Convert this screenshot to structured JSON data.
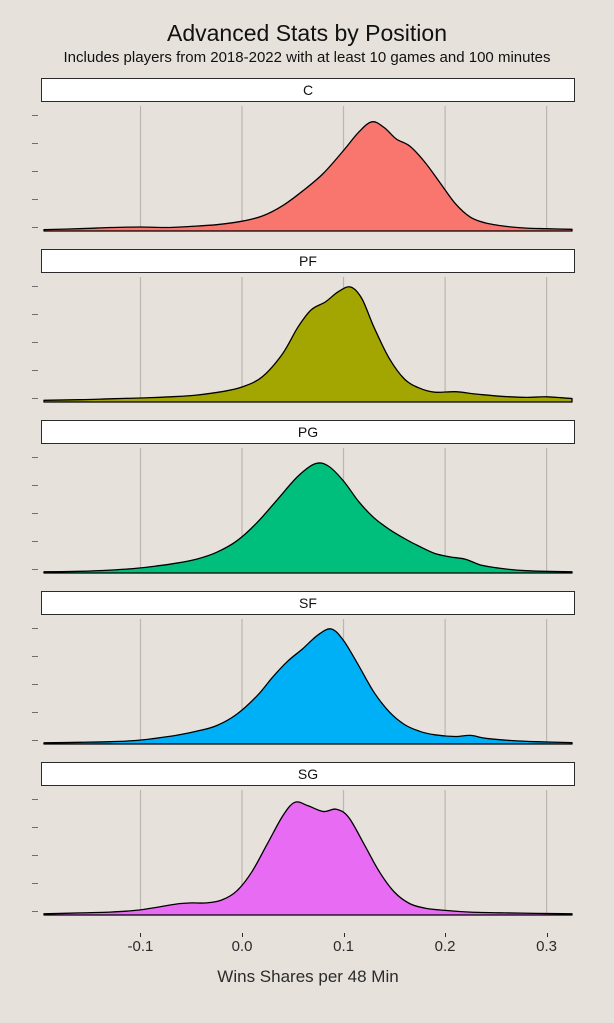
{
  "title": "Advanced Stats by Position",
  "subtitle": "Includes players from 2018-2022 with at least 10 games and 100 minutes",
  "colors": {
    "background": "#E7E1DC",
    "gridline": "#BDB5AF",
    "strip_background": "#FFFFFF",
    "strip_border": "#2B2B2B",
    "curve_outline": "#000000",
    "palette": [
      "#F8766D",
      "#A3A500",
      "#00BF7D",
      "#00B0F6",
      "#E76BF3"
    ]
  },
  "chart_data": {
    "type": "area",
    "chart_kind": "faceted density (ridgeline) plot, one facet per position",
    "title": "Advanced Stats by Position",
    "subtitle": "Includes players from 2018-2022 with at least 10 games and 100 minutes",
    "xlabel": "Wins Shares per 48 Min",
    "ylabel": "",
    "grid": "vertical gridlines at x ticks",
    "legend": "none (facet strips label each series)",
    "x_axis": {
      "min": -0.198,
      "max": 0.328,
      "ticks": [
        -0.1,
        0.0,
        0.1,
        0.2,
        0.3
      ],
      "tick_labels": [
        "-0.1",
        "0.0",
        "0.1",
        "0.2",
        "0.3"
      ]
    },
    "y_axis": {
      "label": "",
      "tick_labels": [],
      "note": "unlabeled density axis, 5 small tick marks per facet"
    },
    "facets": [
      {
        "label": "C",
        "color": "#F8766D",
        "peak_x": 0.128,
        "points": [
          [
            -0.195,
            0.012
          ],
          [
            -0.16,
            0.02
          ],
          [
            -0.13,
            0.03
          ],
          [
            -0.1,
            0.035
          ],
          [
            -0.075,
            0.03
          ],
          [
            -0.05,
            0.04
          ],
          [
            -0.025,
            0.055
          ],
          [
            0.0,
            0.085
          ],
          [
            0.02,
            0.13
          ],
          [
            0.04,
            0.22
          ],
          [
            0.06,
            0.35
          ],
          [
            0.08,
            0.5
          ],
          [
            0.1,
            0.7
          ],
          [
            0.115,
            0.86
          ],
          [
            0.128,
            0.95
          ],
          [
            0.14,
            0.9
          ],
          [
            0.152,
            0.8
          ],
          [
            0.165,
            0.74
          ],
          [
            0.18,
            0.6
          ],
          [
            0.195,
            0.42
          ],
          [
            0.21,
            0.24
          ],
          [
            0.225,
            0.12
          ],
          [
            0.24,
            0.07
          ],
          [
            0.26,
            0.04
          ],
          [
            0.28,
            0.025
          ],
          [
            0.3,
            0.02
          ],
          [
            0.325,
            0.015
          ]
        ]
      },
      {
        "label": "PF",
        "color": "#A3A500",
        "peak_x": 0.107,
        "points": [
          [
            -0.195,
            0.015
          ],
          [
            -0.16,
            0.02
          ],
          [
            -0.13,
            0.028
          ],
          [
            -0.1,
            0.035
          ],
          [
            -0.07,
            0.045
          ],
          [
            -0.045,
            0.06
          ],
          [
            -0.02,
            0.09
          ],
          [
            0.0,
            0.13
          ],
          [
            0.02,
            0.22
          ],
          [
            0.04,
            0.42
          ],
          [
            0.055,
            0.65
          ],
          [
            0.068,
            0.8
          ],
          [
            0.082,
            0.87
          ],
          [
            0.095,
            0.96
          ],
          [
            0.107,
            1.0
          ],
          [
            0.118,
            0.9
          ],
          [
            0.13,
            0.65
          ],
          [
            0.145,
            0.38
          ],
          [
            0.16,
            0.2
          ],
          [
            0.175,
            0.12
          ],
          [
            0.19,
            0.085
          ],
          [
            0.21,
            0.09
          ],
          [
            0.23,
            0.07
          ],
          [
            0.255,
            0.05
          ],
          [
            0.28,
            0.04
          ],
          [
            0.3,
            0.045
          ],
          [
            0.325,
            0.03
          ]
        ]
      },
      {
        "label": "PG",
        "color": "#00BF7D",
        "peak_x": 0.072,
        "points": [
          [
            -0.195,
            0.01
          ],
          [
            -0.16,
            0.015
          ],
          [
            -0.13,
            0.025
          ],
          [
            -0.105,
            0.04
          ],
          [
            -0.085,
            0.06
          ],
          [
            -0.065,
            0.085
          ],
          [
            -0.045,
            0.12
          ],
          [
            -0.025,
            0.18
          ],
          [
            -0.005,
            0.28
          ],
          [
            0.015,
            0.44
          ],
          [
            0.035,
            0.64
          ],
          [
            0.055,
            0.84
          ],
          [
            0.072,
            0.95
          ],
          [
            0.085,
            0.93
          ],
          [
            0.1,
            0.8
          ],
          [
            0.115,
            0.62
          ],
          [
            0.13,
            0.48
          ],
          [
            0.145,
            0.38
          ],
          [
            0.16,
            0.3
          ],
          [
            0.175,
            0.23
          ],
          [
            0.19,
            0.17
          ],
          [
            0.205,
            0.14
          ],
          [
            0.22,
            0.12
          ],
          [
            0.235,
            0.07
          ],
          [
            0.255,
            0.04
          ],
          [
            0.28,
            0.02
          ],
          [
            0.325,
            0.01
          ]
        ]
      },
      {
        "label": "SF",
        "color": "#00B0F6",
        "peak_x": 0.088,
        "points": [
          [
            -0.195,
            0.01
          ],
          [
            -0.16,
            0.015
          ],
          [
            -0.13,
            0.02
          ],
          [
            -0.105,
            0.03
          ],
          [
            -0.085,
            0.05
          ],
          [
            -0.065,
            0.075
          ],
          [
            -0.045,
            0.11
          ],
          [
            -0.025,
            0.16
          ],
          [
            -0.005,
            0.26
          ],
          [
            0.015,
            0.42
          ],
          [
            0.03,
            0.58
          ],
          [
            0.045,
            0.72
          ],
          [
            0.06,
            0.83
          ],
          [
            0.075,
            0.95
          ],
          [
            0.088,
            1.0
          ],
          [
            0.1,
            0.9
          ],
          [
            0.115,
            0.68
          ],
          [
            0.13,
            0.45
          ],
          [
            0.145,
            0.28
          ],
          [
            0.16,
            0.17
          ],
          [
            0.175,
            0.11
          ],
          [
            0.19,
            0.08
          ],
          [
            0.21,
            0.065
          ],
          [
            0.225,
            0.075
          ],
          [
            0.24,
            0.05
          ],
          [
            0.265,
            0.03
          ],
          [
            0.29,
            0.02
          ],
          [
            0.325,
            0.012
          ]
        ]
      },
      {
        "label": "SG",
        "color": "#E76BF3",
        "peak_x": 0.052,
        "points": [
          [
            -0.195,
            0.01
          ],
          [
            -0.16,
            0.018
          ],
          [
            -0.13,
            0.025
          ],
          [
            -0.105,
            0.04
          ],
          [
            -0.085,
            0.065
          ],
          [
            -0.065,
            0.095
          ],
          [
            -0.05,
            0.105
          ],
          [
            -0.035,
            0.105
          ],
          [
            -0.02,
            0.13
          ],
          [
            -0.005,
            0.21
          ],
          [
            0.01,
            0.38
          ],
          [
            0.025,
            0.62
          ],
          [
            0.04,
            0.86
          ],
          [
            0.052,
            0.98
          ],
          [
            0.065,
            0.95
          ],
          [
            0.08,
            0.9
          ],
          [
            0.093,
            0.92
          ],
          [
            0.105,
            0.85
          ],
          [
            0.12,
            0.62
          ],
          [
            0.135,
            0.38
          ],
          [
            0.15,
            0.2
          ],
          [
            0.165,
            0.1
          ],
          [
            0.18,
            0.06
          ],
          [
            0.2,
            0.04
          ],
          [
            0.225,
            0.025
          ],
          [
            0.26,
            0.018
          ],
          [
            0.29,
            0.014
          ],
          [
            0.325,
            0.01
          ]
        ]
      }
    ]
  }
}
